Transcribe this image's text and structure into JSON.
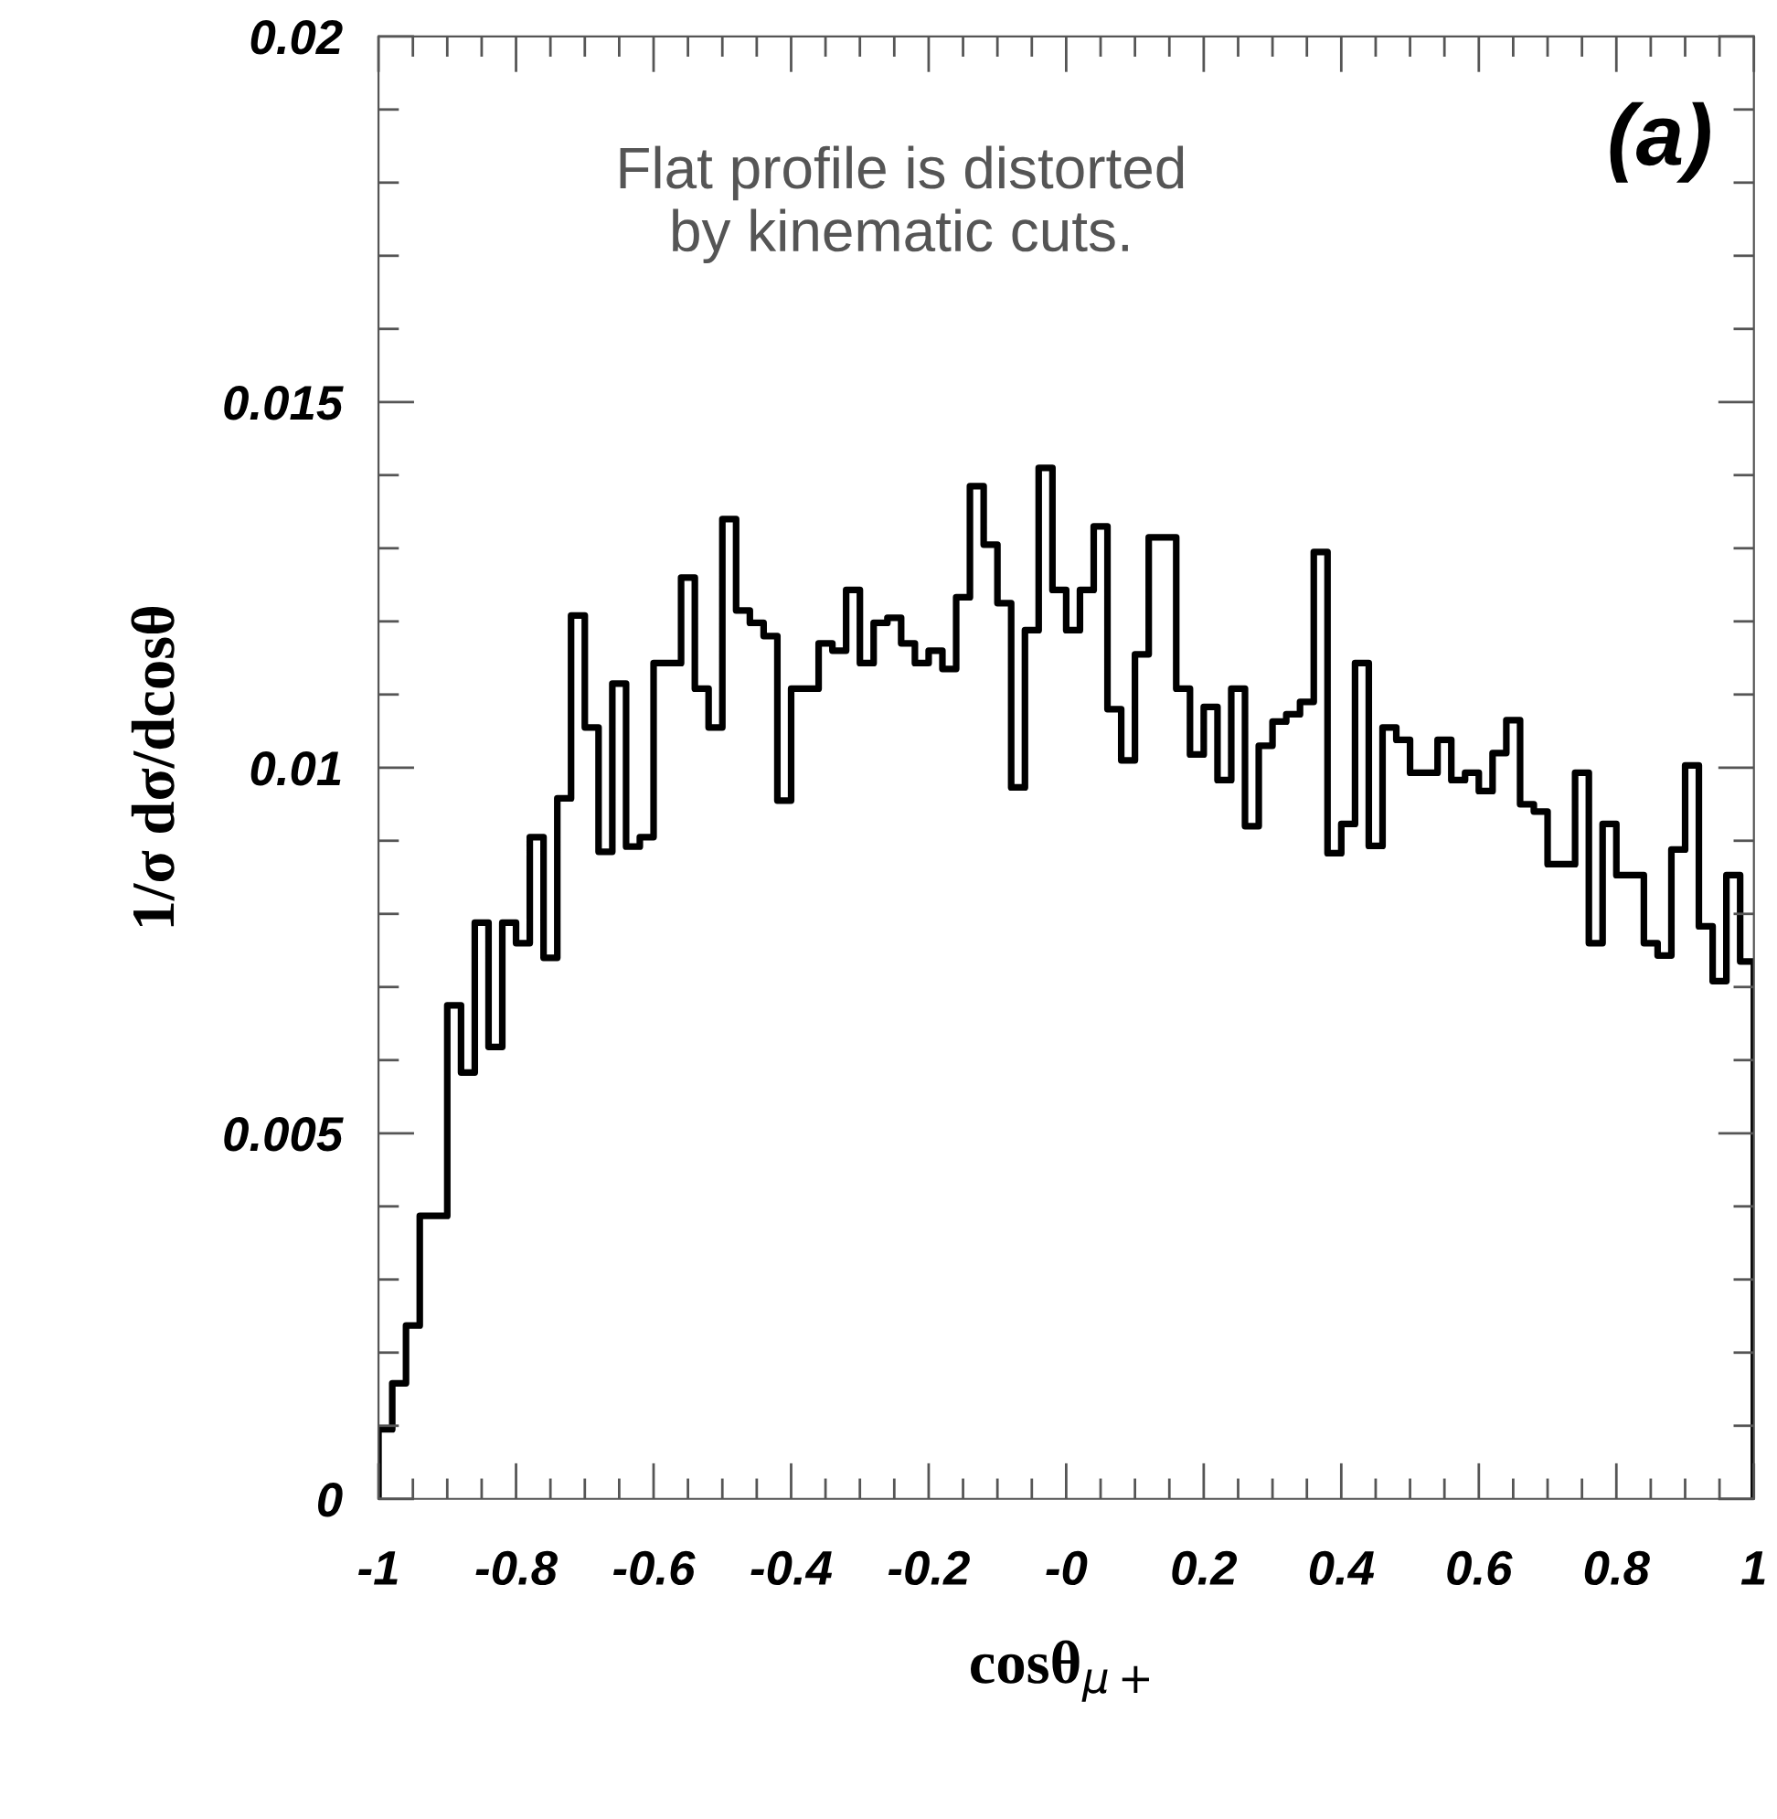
{
  "chart_data": {
    "type": "histogram",
    "xlabel": "cosθ$_{μ+}$",
    "ylabel": "1/σ dσ/dcosθ",
    "annotations": [
      "Flat profile is distorted\nby kinematic cuts.",
      "(a)"
    ],
    "bins": [
      -1,
      -0.98,
      -0.96,
      -0.94,
      -0.92,
      -0.9,
      -0.88,
      -0.86,
      -0.84,
      -0.82,
      -0.8,
      -0.78,
      -0.76,
      -0.74,
      -0.72,
      -0.7,
      -0.68,
      -0.66,
      -0.64,
      -0.62,
      -0.6,
      -0.58,
      -0.56,
      -0.54,
      -0.52,
      -0.5,
      -0.48,
      -0.46,
      -0.44,
      -0.42,
      -0.4,
      -0.38,
      -0.36,
      -0.34,
      -0.32,
      -0.3,
      -0.28,
      -0.26,
      -0.24,
      -0.22,
      -0.2,
      -0.18,
      -0.16,
      -0.14,
      -0.12,
      -0.1,
      -0.08,
      -0.06,
      -0.04,
      -0.02,
      0,
      0.02,
      0.04,
      0.06,
      0.08,
      0.1,
      0.12,
      0.14,
      0.16,
      0.18,
      0.2,
      0.22,
      0.24,
      0.26,
      0.28,
      0.3,
      0.32,
      0.34,
      0.36,
      0.38,
      0.4,
      0.42,
      0.44,
      0.46,
      0.48,
      0.5,
      0.52,
      0.54,
      0.56,
      0.58,
      0.6,
      0.62,
      0.64,
      0.66,
      0.68,
      0.7,
      0.72,
      0.74,
      0.76,
      0.78,
      0.8,
      0.82,
      0.84,
      0.86,
      0.88,
      0.9,
      0.92,
      0.94,
      0.96,
      0.98,
      1
    ],
    "values": [
      0.00095,
      0.00158,
      0.00237,
      0.00387,
      0.00387,
      0.00675,
      0.00583,
      0.00788,
      0.00618,
      0.00788,
      0.0076,
      0.00905,
      0.0074,
      0.00958,
      0.01208,
      0.01055,
      0.00885,
      0.01115,
      0.00892,
      0.00905,
      0.01143,
      0.01143,
      0.0126,
      0.01108,
      0.01055,
      0.0134,
      0.01215,
      0.01198,
      0.0118,
      0.00955,
      0.01108,
      0.01108,
      0.0117,
      0.0116,
      0.01243,
      0.01143,
      0.01198,
      0.01205,
      0.0117,
      0.01143,
      0.0116,
      0.01135,
      0.01233,
      0.01385,
      0.01305,
      0.01225,
      0.00973,
      0.01188,
      0.0141,
      0.01243,
      0.01188,
      0.01243,
      0.0133,
      0.0108,
      0.0101,
      0.01155,
      0.01315,
      0.01315,
      0.01108,
      0.01018,
      0.01083,
      0.00983,
      0.01108,
      0.0092,
      0.0103,
      0.01063,
      0.01073,
      0.0109,
      0.01295,
      0.00883,
      0.00923,
      0.01143,
      0.00893,
      0.01055,
      0.01038,
      0.00993,
      0.00993,
      0.01038,
      0.00983,
      0.00993,
      0.00968,
      0.0102,
      0.01065,
      0.0095,
      0.0094,
      0.00868,
      0.00868,
      0.00993,
      0.0076,
      0.00923,
      0.00853,
      0.00853,
      0.0076,
      0.00743,
      0.00888,
      0.01003,
      0.00783,
      0.00708,
      0.00853,
      0.00735
    ],
    "color": "#000000",
    "xlim": [
      -1,
      1
    ],
    "ylim": [
      0,
      0.02
    ],
    "xticks": [
      -1,
      -0.8,
      -0.6,
      -0.4,
      -0.2,
      {
        "value": 0,
        "label": "-0"
      },
      0.2,
      0.4,
      0.6,
      0.8,
      1,
      {
        "value": -0.95,
        "label": null
      },
      {
        "value": -0.9,
        "label": null
      },
      {
        "value": -0.85,
        "label": null
      },
      {
        "value": -0.75,
        "label": null
      },
      {
        "value": -0.7,
        "label": null
      },
      {
        "value": -0.65,
        "label": null
      },
      {
        "value": -0.55,
        "label": null
      },
      {
        "value": -0.5,
        "label": null
      },
      {
        "value": -0.45,
        "label": null
      },
      {
        "value": -0.35,
        "label": null
      },
      {
        "value": -0.3,
        "label": null
      },
      {
        "value": -0.25,
        "label": null
      },
      {
        "value": -0.15,
        "label": null
      },
      {
        "value": -0.1,
        "label": null
      },
      {
        "value": -0.05,
        "label": null
      },
      {
        "value": 0.05,
        "label": null
      },
      {
        "value": 0.1,
        "label": null
      },
      {
        "value": 0.15,
        "label": null
      },
      {
        "value": 0.25,
        "label": null
      },
      {
        "value": 0.3,
        "label": null
      },
      {
        "value": 0.35,
        "label": null
      },
      {
        "value": 0.45,
        "label": null
      },
      {
        "value": 0.5,
        "label": null
      },
      {
        "value": 0.55,
        "label": null
      },
      {
        "value": 0.65,
        "label": null
      },
      {
        "value": 0.7,
        "label": null
      },
      {
        "value": 0.75,
        "label": null
      },
      {
        "value": 0.85,
        "label": null
      },
      {
        "value": 0.9,
        "label": null
      },
      {
        "value": 0.95,
        "label": null
      }
    ],
    "yticks": [
      0,
      0.005,
      0.01,
      0.015,
      0.02,
      {
        "value": 0.001,
        "label": null
      },
      {
        "value": 0.002,
        "label": null
      },
      {
        "value": 0.003,
        "label": null
      },
      {
        "value": 0.004,
        "label": null
      },
      {
        "value": 0.006,
        "label": null
      },
      {
        "value": 0.007,
        "label": null
      },
      {
        "value": 0.008,
        "label": null
      },
      {
        "value": 0.009,
        "label": null
      },
      {
        "value": 0.011,
        "label": null
      },
      {
        "value": 0.012,
        "label": null
      },
      {
        "value": 0.013,
        "label": null
      },
      {
        "value": 0.014,
        "label": null
      },
      {
        "value": 0.016,
        "label": null
      },
      {
        "value": 0.017,
        "label": null
      },
      {
        "value": 0.018,
        "label": null
      },
      {
        "value": 0.019,
        "label": null
      }
    ],
    "grid": false,
    "legend": false
  }
}
